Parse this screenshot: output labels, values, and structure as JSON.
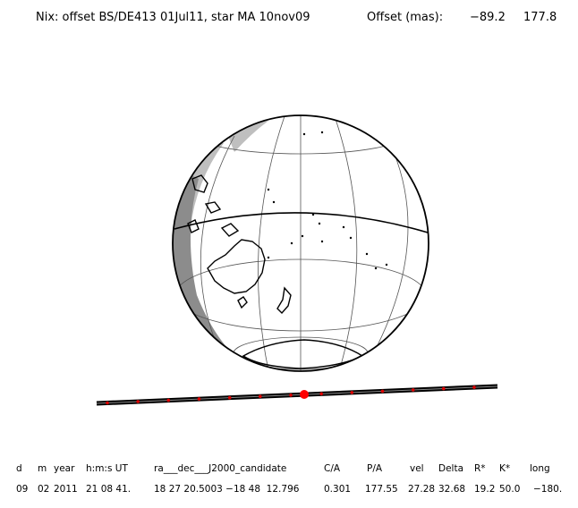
{
  "title": {
    "text": "Nix: offset BS/DE413 01Jul11, star MA 10nov09",
    "offset_label": "Offset (mas):",
    "offset_ra": "−89.2",
    "offset_dec": "177.8"
  },
  "table": {
    "headers": [
      "d",
      "m",
      "year",
      "h:m:s UT",
      "ra___dec___J2000_candidate",
      "C/A",
      "P/A",
      "vel",
      "Delta",
      "R*",
      "K*",
      "long"
    ],
    "values": [
      "09",
      "02",
      "2011",
      "21 08 41.",
      "18 27 20.5003 −18 48  12.796",
      "0.301",
      "177.55",
      "27.28",
      "32.68",
      "19.2",
      "50.0",
      "−180."
    ]
  },
  "colors": {
    "track": "#000000",
    "track_marks": "#e00000",
    "closest_approach": "#ff0000",
    "land": "#000000",
    "night_shade": "#bfbfbf",
    "night_deep": "#8c8c8c",
    "grid": "#555555"
  }
}
